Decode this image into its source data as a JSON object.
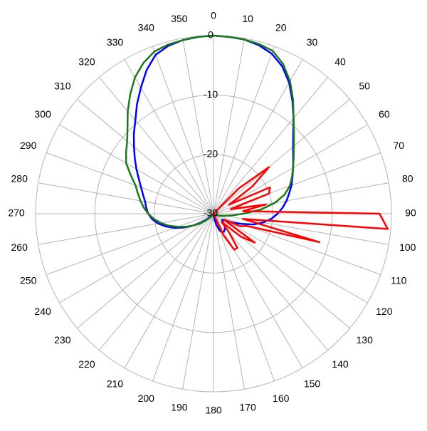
{
  "chart_data": {
    "type": "polar",
    "x": [
      0,
      5,
      10,
      15,
      20,
      25,
      30,
      35,
      40,
      45,
      50,
      55,
      60,
      65,
      70,
      75,
      80,
      85,
      90,
      95,
      100,
      105,
      110,
      115,
      120,
      125,
      130,
      135,
      140,
      145,
      150,
      155,
      160,
      165,
      170,
      175,
      180,
      185,
      190,
      195,
      200,
      205,
      210,
      215,
      220,
      225,
      230,
      235,
      240,
      245,
      250,
      255,
      260,
      265,
      270,
      275,
      280,
      285,
      290,
      295,
      300,
      305,
      310,
      315,
      320,
      325,
      330,
      335,
      340,
      345,
      350,
      355
    ],
    "rlim": [
      -30,
      0
    ],
    "rticks": [
      0,
      -10,
      -20,
      -30
    ],
    "xticks": [
      0,
      10,
      20,
      30,
      40,
      50,
      60,
      70,
      80,
      90,
      100,
      110,
      120,
      130,
      140,
      150,
      160,
      170,
      180,
      190,
      200,
      210,
      220,
      230,
      240,
      250,
      260,
      270,
      280,
      290,
      300,
      310,
      320,
      330,
      340,
      350
    ],
    "grid": true,
    "series": [
      {
        "color": "#0000ff",
        "values": [
          0,
          -0.1,
          -0.2,
          -0.6,
          -1.3,
          -2.6,
          -4.5,
          -6.8,
          -9,
          -11,
          -12.5,
          -13.6,
          -14.5,
          -15.3,
          -16,
          -16.8,
          -17.5,
          -18.3,
          -19.2,
          -20.2,
          -21.5,
          -23,
          -25,
          -26.5,
          -28,
          -28.2,
          -28,
          -27.5,
          -27,
          -26.7,
          -26.5,
          -26.6,
          -27,
          -28,
          -29,
          -29.7,
          -30,
          -30,
          -30,
          -30,
          -30,
          -30,
          -30,
          -30,
          -30,
          -29.5,
          -28.5,
          -27.3,
          -26,
          -24.5,
          -23,
          -21.7,
          -20.5,
          -19.6,
          -19,
          -18.6,
          -18.3,
          -17.7,
          -17,
          -16.1,
          -15,
          -13.8,
          -12.5,
          -11,
          -9.5,
          -7.5,
          -5.5,
          -3.3,
          -1.5,
          -0.7,
          -0.3,
          -0.1
        ]
      },
      {
        "color": "#1a7a1a",
        "values": [
          0,
          -0.1,
          -0.2,
          -0.4,
          -0.8,
          -2.2,
          -4.2,
          -6.6,
          -9,
          -10.8,
          -12.3,
          -13.5,
          -14.5,
          -15.4,
          -16.3,
          -17.6,
          -19.5,
          -22,
          -25,
          -26.8,
          -28,
          -28.7,
          -29,
          -29.6,
          -30,
          -30,
          -30,
          -30,
          -30,
          -30,
          -30,
          -30,
          -30,
          -30,
          -30,
          -30,
          -30,
          -30,
          -30,
          -30,
          -30,
          -30,
          -30,
          -30,
          -29.5,
          -29,
          -28,
          -27,
          -26,
          -24.8,
          -23.6,
          -22.2,
          -21,
          -19.9,
          -19,
          -18.2,
          -17.5,
          -16.8,
          -16,
          -14.6,
          -13,
          -12,
          -11,
          -9.5,
          -7.5,
          -5.5,
          -3.5,
          -2,
          -0.9,
          -0.5,
          -0.3,
          -0.1
        ]
      },
      {
        "color": "#ff0000",
        "values": [
          -30,
          -30,
          -30,
          -30,
          -30,
          -30,
          -30,
          -30,
          -30,
          -24,
          -17.8,
          -22,
          -27,
          -19.5,
          -20,
          -27,
          -21,
          -25,
          -2,
          -0.5,
          -25,
          -11.5,
          -24,
          -25,
          -28,
          -21.5,
          -24,
          -28,
          -26,
          -23,
          -23,
          -26,
          -30,
          -30,
          -30,
          -30,
          -30,
          -30,
          -30,
          -30,
          -30,
          -30,
          -30,
          -30,
          -30,
          -30,
          -30,
          -30,
          -30,
          -30,
          -30,
          -30,
          -30,
          -30,
          -30,
          -30,
          -30,
          -30,
          -30,
          -30,
          -30,
          -30,
          -30,
          -30,
          -30,
          -30,
          -30,
          -30,
          -30,
          -30,
          -30,
          -30
        ]
      }
    ]
  }
}
